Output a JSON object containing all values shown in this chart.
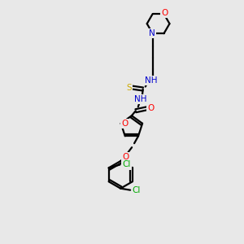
{
  "bg_color": "#e8e8e8",
  "bond_color": "#000000",
  "atom_colors": {
    "N": "#0000cd",
    "O": "#ff0000",
    "S": "#ccaa00",
    "Cl": "#00aa00",
    "C": "#000000"
  },
  "figsize": [
    3.0,
    3.0
  ],
  "dpi": 100
}
